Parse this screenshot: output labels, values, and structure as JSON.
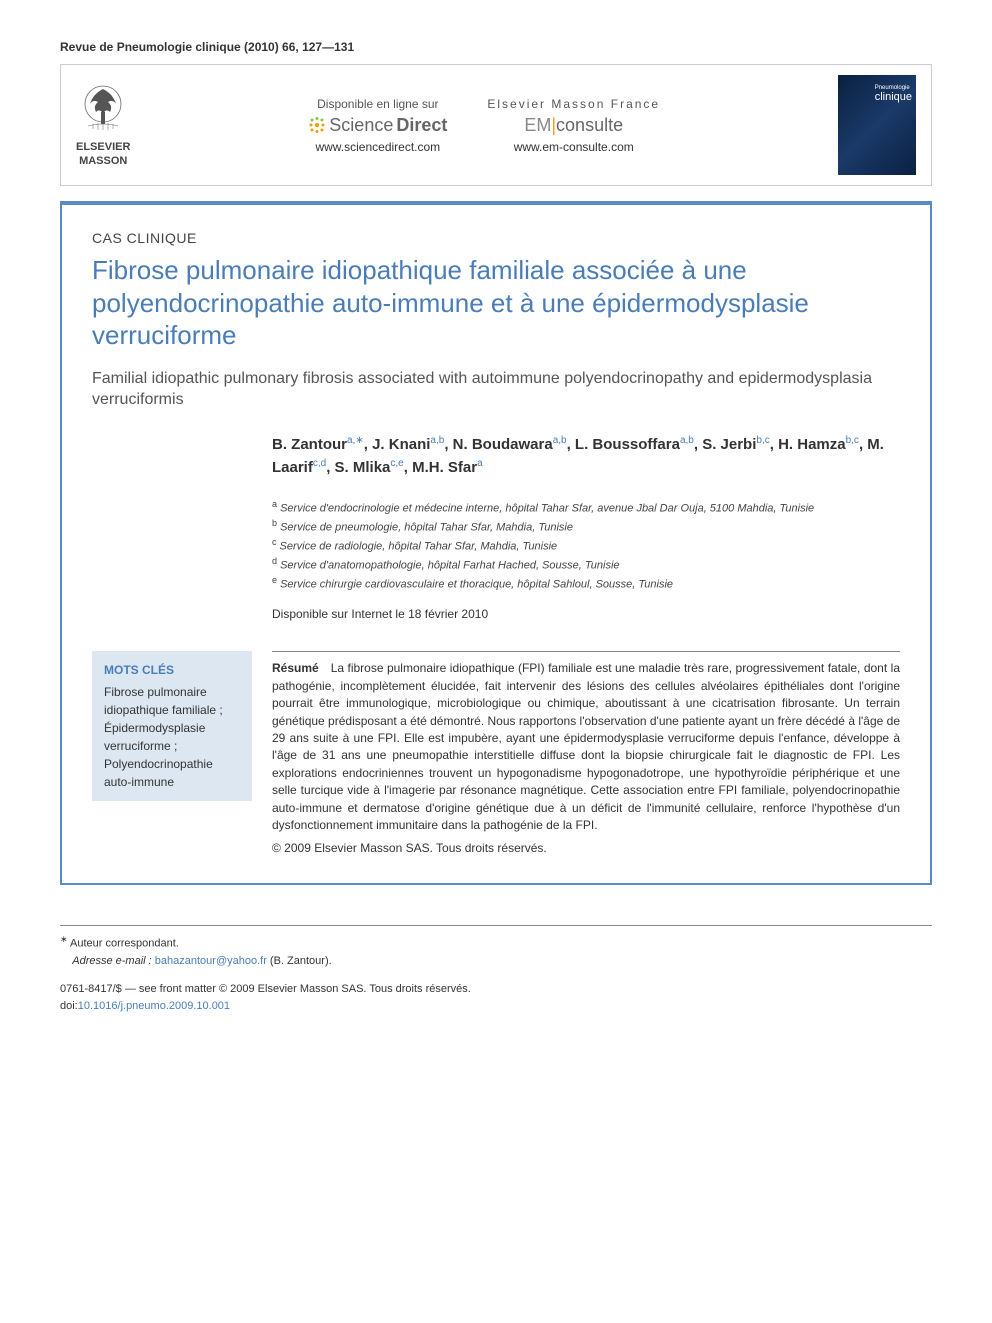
{
  "journal_ref": "Revue de Pneumologie clinique (2010) 66, 127—131",
  "publisher": {
    "name_line1": "ELSEVIER",
    "name_line2": "MASSON"
  },
  "availability": [
    {
      "label": "Disponible en ligne sur",
      "brand_parts": [
        "Science",
        "Direct"
      ],
      "url": "www.sciencedirect.com",
      "icon_color_1": "#8bc34a",
      "icon_color_2": "#ff9800"
    },
    {
      "label": "Elsevier Masson France",
      "brand_parts": [
        "EM",
        "consulte"
      ],
      "url": "www.em-consulte.com"
    }
  ],
  "cover": {
    "title_top": "Pneumologie",
    "title_main": "clinique"
  },
  "article_type": "CAS CLINIQUE",
  "title_fr": "Fibrose pulmonaire idiopathique familiale associée à une polyendocrinopathie auto-immune et à une épidermodysplasie verruciforme",
  "title_en": "Familial idiopathic pulmonary fibrosis associated with autoimmune polyendocrinopathy and epidermodysplasia verruciformis",
  "authors": [
    {
      "name": "B. Zantour",
      "aff": "a,",
      "corr": true
    },
    {
      "name": "J. Knani",
      "aff": "a,b"
    },
    {
      "name": "N. Boudawara",
      "aff": "a,b"
    },
    {
      "name": "L. Boussoffara",
      "aff": "a,b"
    },
    {
      "name": "S. Jerbi",
      "aff": "b,c"
    },
    {
      "name": "H. Hamza",
      "aff": "b,c"
    },
    {
      "name": "M. Laarif",
      "aff": "c,d"
    },
    {
      "name": "S. Mlika",
      "aff": "c,e"
    },
    {
      "name": "M.H. Sfar",
      "aff": "a"
    }
  ],
  "affiliations": [
    {
      "key": "a",
      "text": "Service d'endocrinologie et médecine interne, hôpital Tahar Sfar, avenue Jbal Dar Ouja, 5100 Mahdia, Tunisie"
    },
    {
      "key": "b",
      "text": "Service de pneumologie, hôpital Tahar Sfar, Mahdia, Tunisie"
    },
    {
      "key": "c",
      "text": "Service de radiologie, hôpital Tahar Sfar, Mahdia, Tunisie"
    },
    {
      "key": "d",
      "text": "Service d'anatomopathologie, hôpital Farhat Hached, Sousse, Tunisie"
    },
    {
      "key": "e",
      "text": "Service chirurgie cardiovasculaire et thoracique, hôpital Sahloul, Sousse, Tunisie"
    }
  ],
  "pub_date": "Disponible sur Internet le 18 février 2010",
  "keywords": {
    "heading": "MOTS CLÉS",
    "items": "Fibrose pulmonaire idiopathique familiale ; Épidermodysplasie verruciforme ; Polyendocrinopathie auto-immune"
  },
  "abstract": {
    "label": "Résumé",
    "text": "La fibrose pulmonaire idiopathique (FPI) familiale est une maladie très rare, progressivement fatale, dont la pathogénie, incomplètement élucidée, fait intervenir des lésions des cellules alvéolaires épithéliales dont l'origine pourrait être immunologique, microbiologique ou chimique, aboutissant à une cicatrisation fibrosante. Un terrain génétique prédisposant a été démontré. Nous rapportons l'observation d'une patiente ayant un frère décédé à l'âge de 29 ans suite à une FPI. Elle est impubère, ayant une épidermodysplasie verruciforme depuis l'enfance, développe à l'âge de 31 ans une pneumopathie interstitielle diffuse dont la biopsie chirurgicale fait le diagnostic de FPI. Les explorations endocriniennes trouvent un hypogonadisme hypogonadotrope, une hypothyroïdie périphérique et une selle turcique vide à l'imagerie par résonance magnétique. Cette association entre FPI familiale, polyendocrinopathie auto-immune et dermatose d'origine génétique due à un déficit de l'immunité cellulaire, renforce l'hypothèse d'un dysfonctionnement immunitaire dans la pathogénie de la FPI.",
    "copyright": "© 2009 Elsevier Masson SAS. Tous droits réservés."
  },
  "footnote": {
    "corr_label": "Auteur correspondant.",
    "email_label": "Adresse e-mail :",
    "email": "bahazantour@yahoo.fr",
    "email_name": "(B. Zantour)."
  },
  "footer": {
    "issn": "0761-8417/$ — see front matter © 2009 Elsevier Masson SAS. Tous droits réservés.",
    "doi_label": "doi:",
    "doi": "10.1016/j.pneumo.2009.10.001"
  },
  "colors": {
    "title": "#4a7db8",
    "frame": "#5b8bc4",
    "keyword_bg": "#dde7f2",
    "link": "#4a7db8"
  }
}
